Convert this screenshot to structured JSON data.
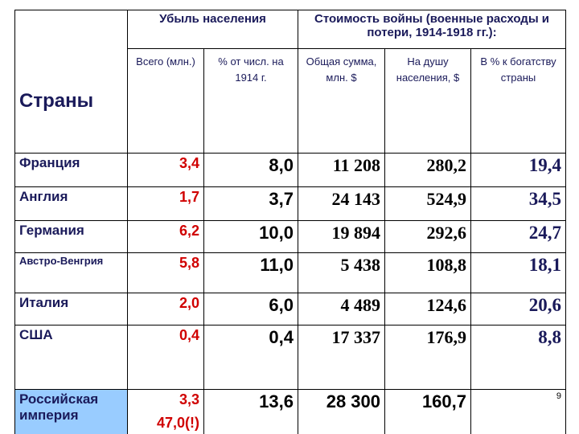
{
  "table": {
    "header": {
      "countries": "Страны",
      "group_loss": "Убыль населения",
      "group_cost": "Стоимость войны (военные расходы и потери, 1914-1918 гг.):",
      "subheaders": [
        "Всего (млн.)",
        "% от числ. на 1914 г.",
        "Общая сумма, млн. $",
        "На душу населения, $",
        "В % к богатству страны"
      ]
    },
    "rows": [
      [
        "Франция",
        "3,4",
        "8,0",
        "11 208",
        "280,2",
        "19,4"
      ],
      [
        "Англия",
        "1,7",
        "3,7",
        "24 143",
        "524,9",
        "34,5"
      ],
      [
        "Германия",
        "6,2",
        "10,0",
        "19 894",
        "292,6",
        "24,7"
      ],
      [
        "Австро-Венгрия",
        "5,8",
        "11,0",
        "5 438",
        "108,8",
        "18,1"
      ],
      [
        "Италия",
        "2,0",
        "6,0",
        "4 489",
        "124,6",
        "20,6"
      ],
      [
        "США",
        "0,4",
        "0,4",
        "17 337",
        "176,9",
        "8,8"
      ],
      [
        "Российская империя",
        "3,3",
        "13,6",
        "28 300",
        "160,7"
      ]
    ],
    "russia_loss_note": "47,0(!)",
    "page_number": "9"
  }
}
